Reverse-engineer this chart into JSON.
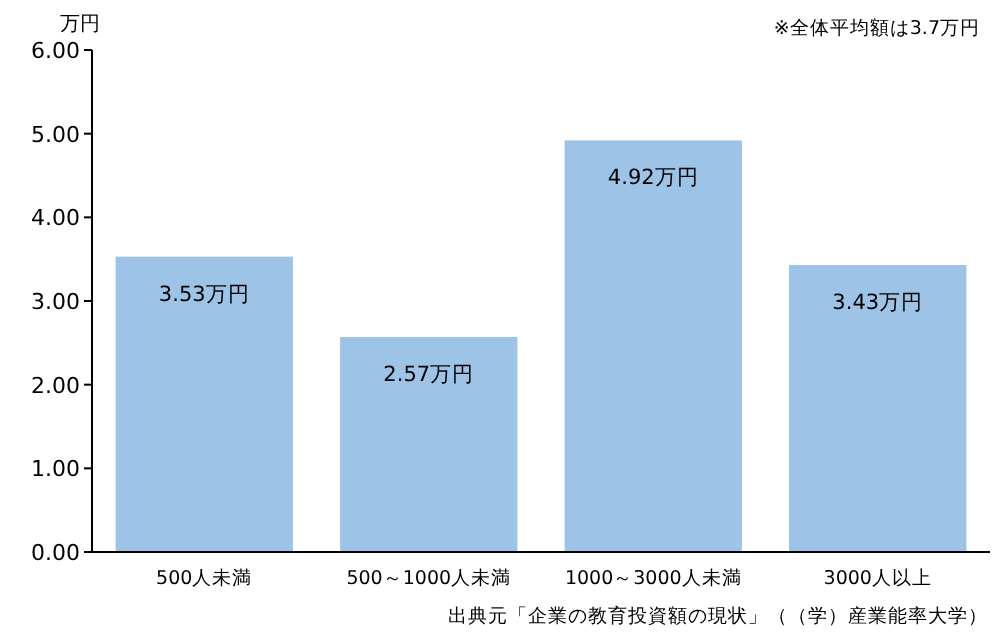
{
  "chart_data": {
    "type": "bar",
    "ylabel": "万円",
    "categories": [
      "500人未満",
      "500～1000人未満",
      "1000～3000人未満",
      "3000人以上"
    ],
    "values": [
      3.53,
      2.57,
      4.92,
      3.43
    ],
    "value_labels": [
      "3.53万円",
      "2.57万円",
      "4.92万円",
      "3.43万円"
    ],
    "color": "#9dc3e6",
    "ylim": [
      0,
      6
    ],
    "yticks": [
      {
        "value": 0,
        "label": "0.00"
      },
      {
        "value": 1,
        "label": "1.00"
      },
      {
        "value": 2,
        "label": "2.00"
      },
      {
        "value": 3,
        "label": "3.00"
      },
      {
        "value": 4,
        "label": "4.00"
      },
      {
        "value": 5,
        "label": "5.00"
      },
      {
        "value": 6,
        "label": "6.00"
      }
    ],
    "annotations": [
      "※全体平均額は3.7万円",
      "出典元「企業の教育投資額の現状」（（学）産業能率大学）"
    ]
  }
}
